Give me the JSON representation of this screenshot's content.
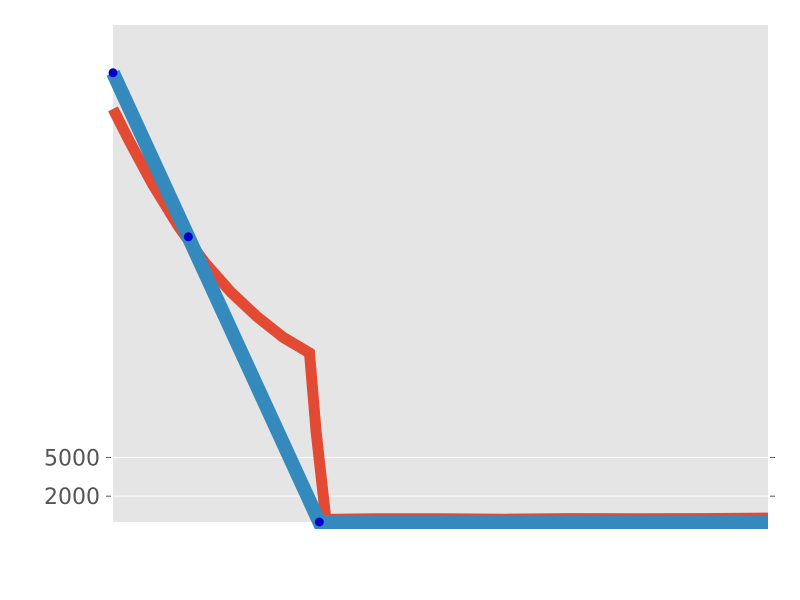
{
  "chart_data": {
    "type": "line",
    "ylim": [
      0,
      38500
    ],
    "xlim": [
      0,
      10
    ],
    "grid": true,
    "legend": "none",
    "y_ticks": [
      {
        "value": 2000,
        "label": "2000"
      },
      {
        "value": 5000,
        "label": "5000"
      }
    ],
    "series": [
      {
        "color": "#e24a33",
        "line_width": 11,
        "x": [
          0,
          0.25,
          0.6,
          1.0,
          1.4,
          1.8,
          2.2,
          2.6,
          3.0,
          3.1,
          3.25,
          4,
          5,
          6,
          7,
          8,
          9,
          10
        ],
        "y": [
          32000,
          29500,
          26200,
          22900,
          20100,
          17800,
          15900,
          14300,
          13100,
          7000,
          200,
          250,
          250,
          220,
          260,
          250,
          260,
          300
        ]
      },
      {
        "color": "#348abd",
        "line_width": 14,
        "marker_color": "#0000cc",
        "marker_x": [
          0,
          1.15,
          3.15
        ],
        "x": [
          0,
          3.15,
          4,
          5,
          6,
          7,
          8,
          9,
          10
        ],
        "y": [
          34800,
          0,
          0,
          0,
          0,
          0,
          0,
          0,
          0
        ]
      }
    ]
  },
  "colors": {
    "plot_background": "#e5e5e5",
    "gridline": "#ffffff"
  }
}
